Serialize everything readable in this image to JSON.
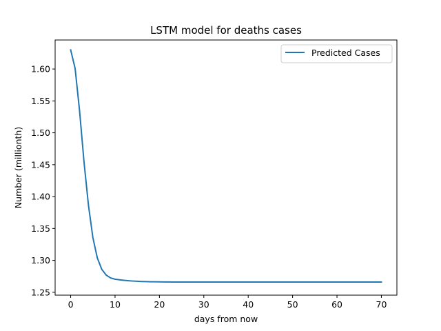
{
  "chart_data": {
    "type": "line",
    "title": "LSTM model for deaths cases",
    "xlabel": "days from now",
    "ylabel": "Number (millionth)",
    "xlim": [
      -3.5,
      73.5
    ],
    "ylim": [
      1.2455,
      1.6455
    ],
    "xticks": [
      0,
      10,
      20,
      30,
      40,
      50,
      60,
      70
    ],
    "yticks": [
      1.25,
      1.3,
      1.35,
      1.4,
      1.45,
      1.5,
      1.55,
      1.6
    ],
    "grid": false,
    "legend_position": "top-right",
    "series": [
      {
        "name": "Predicted Cases",
        "color": "#1f77b4",
        "x": [
          0,
          1,
          2,
          3,
          4,
          5,
          6,
          7,
          8,
          9,
          10,
          11,
          12,
          13,
          14,
          15,
          16,
          17,
          18,
          19,
          20,
          21,
          22,
          23,
          24,
          25,
          26,
          27,
          28,
          29,
          30,
          31,
          32,
          33,
          34,
          35,
          36,
          37,
          38,
          39,
          40,
          41,
          42,
          43,
          44,
          45,
          46,
          47,
          48,
          49,
          50,
          51,
          52,
          53,
          54,
          55,
          56,
          57,
          58,
          59,
          60,
          61,
          62,
          63,
          64,
          65,
          66,
          67,
          68,
          69,
          70
        ],
        "y": [
          1.63,
          1.601,
          1.535,
          1.455,
          1.387,
          1.336,
          1.304,
          1.286,
          1.277,
          1.2725,
          1.2705,
          1.2695,
          1.2687,
          1.2681,
          1.2676,
          1.2672,
          1.2669,
          1.2667,
          1.2665,
          1.2664,
          1.2663,
          1.2662,
          1.2662,
          1.2661,
          1.2661,
          1.2661,
          1.266,
          1.266,
          1.266,
          1.266,
          1.266,
          1.266,
          1.266,
          1.266,
          1.266,
          1.266,
          1.266,
          1.266,
          1.266,
          1.266,
          1.266,
          1.266,
          1.266,
          1.266,
          1.266,
          1.266,
          1.266,
          1.266,
          1.266,
          1.266,
          1.266,
          1.266,
          1.266,
          1.266,
          1.266,
          1.266,
          1.266,
          1.266,
          1.266,
          1.266,
          1.266,
          1.266,
          1.266,
          1.266,
          1.266,
          1.266,
          1.266,
          1.266,
          1.266,
          1.266,
          1.266
        ]
      }
    ]
  }
}
